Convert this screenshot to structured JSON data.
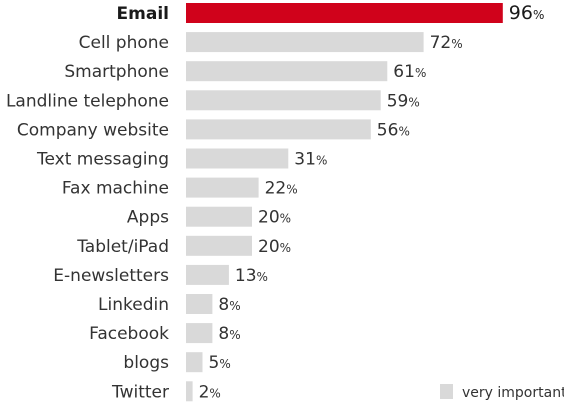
{
  "chart_data": {
    "type": "bar",
    "orientation": "horizontal",
    "categories": [
      "Email",
      "Cell phone",
      "Smartphone",
      "Landline telephone",
      "Company website",
      "Text messaging",
      "Fax machine",
      "Apps",
      "Tablet/iPad",
      "E-newsletters",
      "Linkedin",
      "Facebook",
      "blogs",
      "Twitter"
    ],
    "series": [
      {
        "name": "very important",
        "values": [
          96,
          72,
          61,
          59,
          56,
          31,
          22,
          20,
          20,
          13,
          8,
          8,
          5,
          2
        ]
      }
    ],
    "value_suffix": "%",
    "highlight_category": "Email",
    "colors": {
      "bar": "#d9d9d9",
      "highlight": "#d0021b",
      "text": "#333333"
    },
    "xlim": [
      0,
      100
    ],
    "grid": false,
    "legend_position": "bottom-right"
  }
}
